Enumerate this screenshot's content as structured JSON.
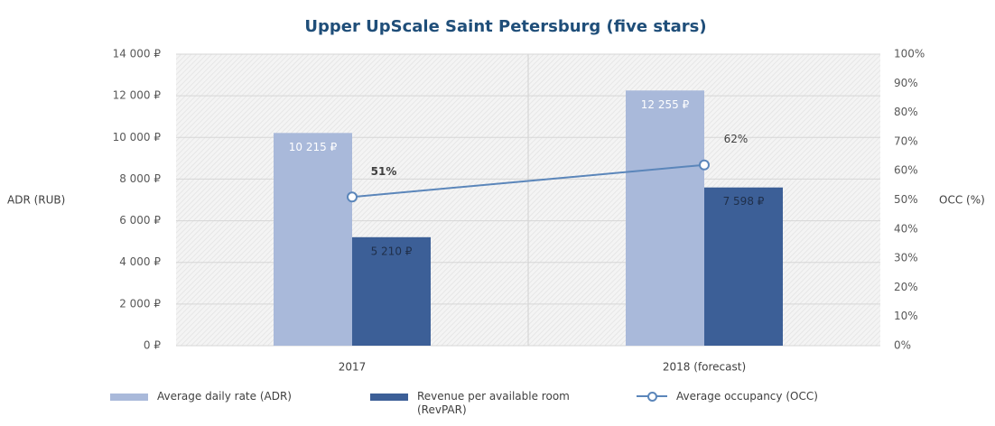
{
  "chart_data": {
    "type": "bar",
    "title": "Upper UpScale Saint Petersburg (five stars)",
    "y_label": "ADR (RUB)",
    "y2_label": "OCC (%)",
    "categories": [
      "2017",
      "2018 (forecast)"
    ],
    "series": [
      {
        "name": "Average daily rate (ADR)",
        "type": "bar",
        "color": "#a9b9da",
        "values": [
          10215,
          12255
        ],
        "value_labels": [
          "10 215 ₽",
          "12 255 ₽"
        ]
      },
      {
        "name": "Revenue per available room (RevPAR)",
        "type": "bar",
        "color": "#3c5f97",
        "values": [
          5210,
          7598
        ],
        "value_labels": [
          "5 210 ₽",
          "7 598 ₽"
        ]
      },
      {
        "name": "Average occupancy (OCC)",
        "type": "line",
        "axis": "y2",
        "color": "#5b86ba",
        "values": [
          51,
          62
        ],
        "value_labels": [
          "51%",
          "62%"
        ]
      }
    ],
    "ylim": [
      0,
      14000
    ],
    "yticks": [
      {
        "value": 0,
        "label": "0 ₽"
      },
      {
        "value": 2000,
        "label": "2 000 ₽"
      },
      {
        "value": 4000,
        "label": "4 000 ₽"
      },
      {
        "value": 6000,
        "label": "6 000 ₽"
      },
      {
        "value": 8000,
        "label": "8 000 ₽"
      },
      {
        "value": 10000,
        "label": "10 000 ₽"
      },
      {
        "value": 12000,
        "label": "12 000 ₽"
      },
      {
        "value": 14000,
        "label": "14 000 ₽"
      }
    ],
    "y2lim": [
      0,
      100
    ],
    "y2ticks": [
      {
        "value": 0,
        "label": "0%"
      },
      {
        "value": 10,
        "label": "10%"
      },
      {
        "value": 20,
        "label": "20%"
      },
      {
        "value": 30,
        "label": "30%"
      },
      {
        "value": 40,
        "label": "40%"
      },
      {
        "value": 50,
        "label": "50%"
      },
      {
        "value": 60,
        "label": "60%"
      },
      {
        "value": 70,
        "label": "70%"
      },
      {
        "value": 80,
        "label": "80%"
      },
      {
        "value": 90,
        "label": "90%"
      },
      {
        "value": 100,
        "label": "100%"
      }
    ],
    "grid": true,
    "legend": "bottom"
  }
}
